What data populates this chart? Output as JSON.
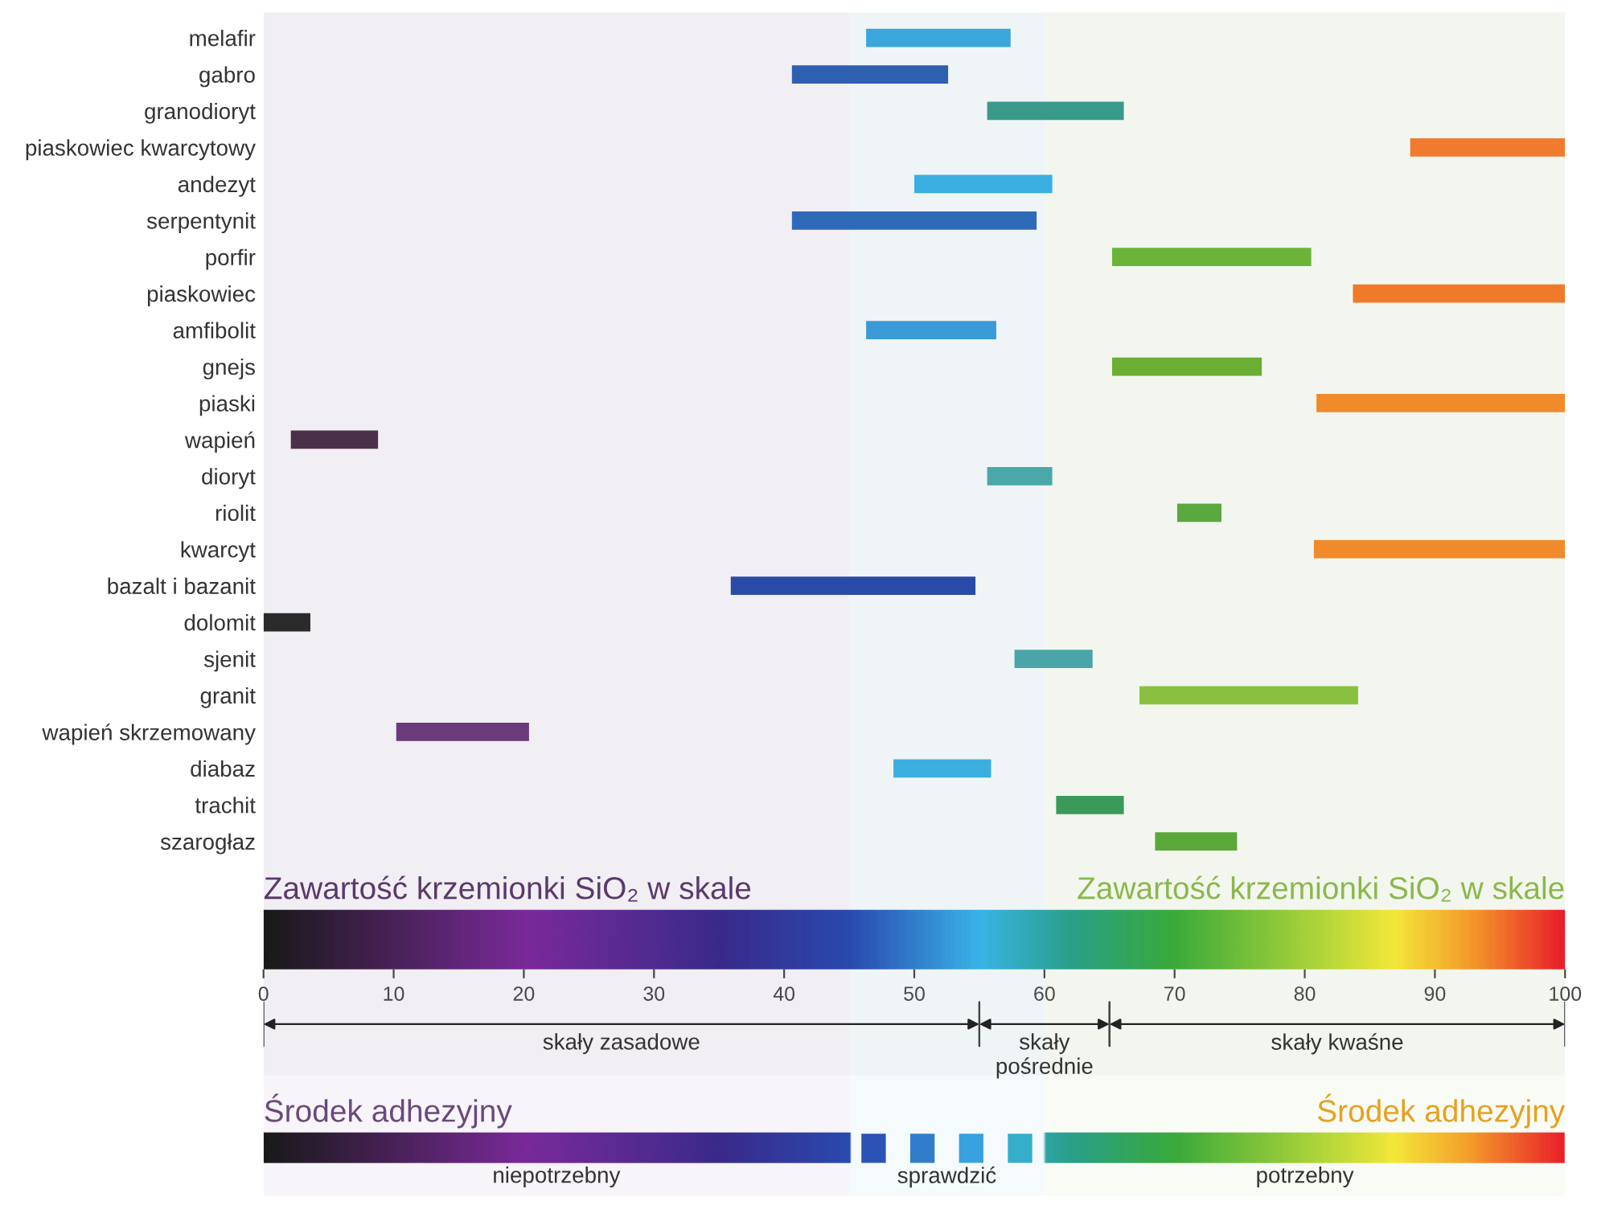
{
  "chart_data": {
    "type": "bar",
    "orientation": "horizontal",
    "xlabel": "Zawartość krzemionki SiO₂ w skale",
    "categories": [
      "melafir",
      "gabro",
      "granodioryt",
      "piaskowiec kwarcytowy",
      "andezyt",
      "serpentynit",
      "porfir",
      "piaskowiec",
      "amfibolit",
      "gnejs",
      "piaski",
      "wapień",
      "dioryt",
      "riolit",
      "kwarcyt",
      "bazalt i bazanit",
      "dolomit",
      "sjenit",
      "granit",
      "wapień skrzemowany",
      "diabaz",
      "trachit",
      "szarogłaz"
    ],
    "base": [
      46.3,
      40.6,
      55.6,
      88.1,
      50.0,
      40.6,
      65.2,
      83.7,
      46.3,
      65.2,
      80.9,
      2.1,
      55.6,
      70.2,
      80.7,
      35.9,
      0,
      57.7,
      67.3,
      10.2,
      48.4,
      60.9,
      68.5
    ],
    "values": [
      11.1,
      12.0,
      10.5,
      11.9,
      10.6,
      18.8,
      15.3,
      16.3,
      10.0,
      11.5,
      19.1,
      6.7,
      5.0,
      3.4,
      19.3,
      18.8,
      3.6,
      6.0,
      16.8,
      10.2,
      7.5,
      5.2,
      6.3
    ],
    "colors": [
      "#3aa6dc",
      "#2f5fb0",
      "#3a9a8a",
      "#f07a30",
      "#3aaee0",
      "#2f6ab8",
      "#6ab43a",
      "#f07a2a",
      "#3a9ad6",
      "#6aae34",
      "#f08a2a",
      "#4a3048",
      "#4aa8a8",
      "#5aa840",
      "#f08a2a",
      "#2a4aa8",
      "#2a2a2a",
      "#4aa4a8",
      "#8ac040",
      "#6a3a7a",
      "#3aaede",
      "#3a9a5a",
      "#5aa83a"
    ],
    "xlim": [
      0,
      100
    ],
    "xticks": [
      0,
      10,
      20,
      30,
      40,
      50,
      60,
      70,
      80,
      90,
      100
    ],
    "bands": [
      {
        "axis": "x",
        "from": 0,
        "to": 55,
        "label": "skały zasadowe"
      },
      {
        "axis": "x",
        "from": 55,
        "to": 65,
        "label": "skały\npośrednie"
      },
      {
        "axis": "x",
        "from": 65,
        "to": 100,
        "label": "skały kwaśne"
      },
      {
        "axis": "x",
        "from": 0,
        "to": 45,
        "label": "niepotrzebny",
        "color": "#6a2a9a"
      },
      {
        "axis": "x",
        "from": 45,
        "to": 60,
        "label": "sprawdzić",
        "color": "#3aaee0"
      },
      {
        "axis": "x",
        "from": 60,
        "to": 100,
        "label": "potrzebny",
        "color": "#8ac040"
      }
    ],
    "annotations": [
      "Zawartość krzemionki SiO₂ w skale",
      "Środek adhezyjny",
      "Środek adhezyjny"
    ]
  }
}
